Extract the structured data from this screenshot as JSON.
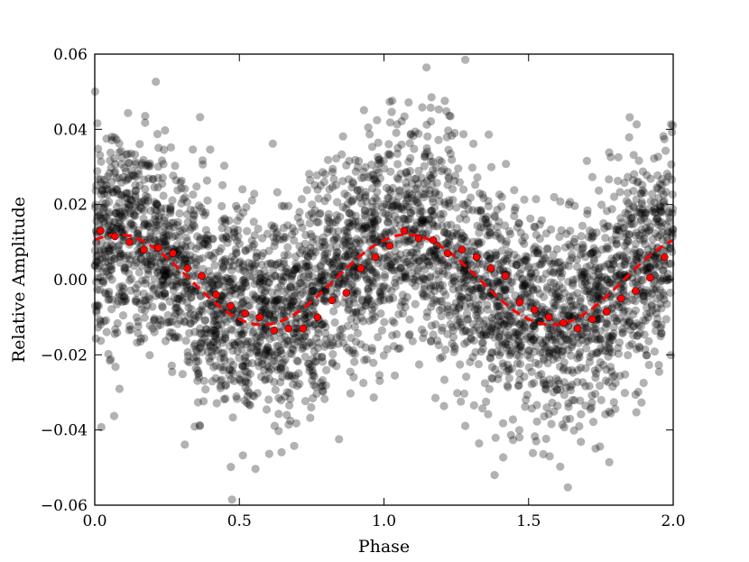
{
  "chart_data": {
    "type": "scatter",
    "title": "",
    "xlabel": "Phase",
    "ylabel": "Relative Amplitude",
    "xlim": [
      0.0,
      2.0
    ],
    "ylim": [
      -0.06,
      0.06
    ],
    "x_ticks": [
      0.0,
      0.5,
      1.0,
      1.5,
      2.0
    ],
    "x_tick_labels": [
      "0.0",
      "0.5",
      "1.0",
      "1.5",
      "2.0"
    ],
    "y_ticks": [
      -0.06,
      -0.04,
      -0.02,
      0.0,
      0.02,
      0.04,
      0.06
    ],
    "y_tick_labels": [
      "−0.06",
      "−0.04",
      "−0.02",
      "0.00",
      "0.02",
      "0.04",
      "0.06"
    ],
    "grid": false,
    "legend": "none",
    "colors": {
      "scatter": "#000000",
      "binned": "#ff0000",
      "model": "#ff0000"
    },
    "series": [
      {
        "kind": "scatter-cloud",
        "point_count_approx": 4000,
        "opacity": 0.3,
        "model": "0.012*cos(2*pi*(x-0.08)) + noise(sd 0.014)"
      },
      {
        "kind": "binned-points",
        "x": [
          0.02,
          0.07,
          0.12,
          0.17,
          0.22,
          0.27,
          0.32,
          0.37,
          0.42,
          0.47,
          0.52,
          0.57,
          0.62,
          0.67,
          0.72,
          0.77,
          0.82,
          0.87,
          0.92,
          0.97,
          1.02,
          1.07,
          1.12,
          1.17,
          1.22,
          1.27,
          1.32,
          1.37,
          1.42,
          1.47,
          1.52,
          1.57,
          1.62,
          1.67,
          1.72,
          1.77,
          1.82,
          1.87,
          1.92,
          1.97
        ],
        "y": [
          0.013,
          0.0115,
          0.01,
          0.008,
          0.0085,
          0.007,
          0.003,
          0.001,
          -0.004,
          -0.007,
          -0.009,
          -0.01,
          -0.0135,
          -0.013,
          -0.013,
          -0.01,
          -0.0055,
          -0.0035,
          0.003,
          0.006,
          0.009,
          0.013,
          0.011,
          0.0105,
          0.007,
          0.008,
          0.006,
          0.003,
          0.001,
          -0.006,
          -0.008,
          -0.01,
          -0.0115,
          -0.013,
          -0.0105,
          -0.0085,
          -0.005,
          -0.003,
          0.0005,
          0.006
        ]
      },
      {
        "kind": "model-line",
        "style": "dashed",
        "function": "0.0120*cos(2*pi*(x-0.08))"
      }
    ]
  }
}
